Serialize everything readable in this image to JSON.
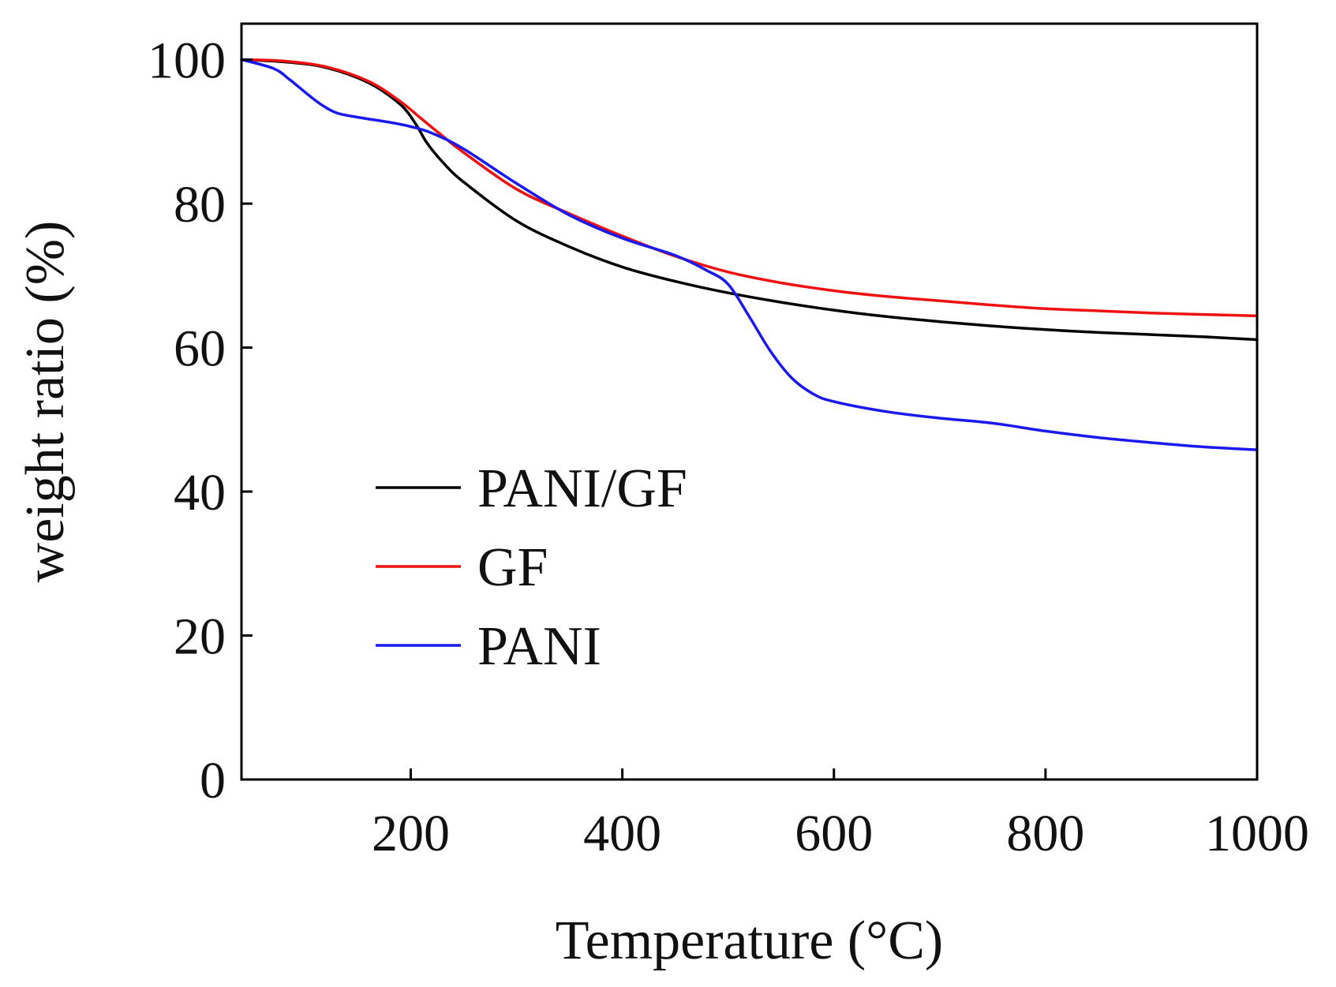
{
  "chart_data": {
    "type": "line",
    "title": "",
    "xlabel": "Temperature (°C)",
    "ylabel": "weight ratio (%)",
    "xlim": [
      40,
      1000
    ],
    "ylim": [
      0,
      105
    ],
    "xticks": [
      200,
      400,
      600,
      800,
      1000
    ],
    "yticks": [
      0,
      20,
      40,
      60,
      80,
      100
    ],
    "grid": false,
    "legend_position": "lower-left",
    "series": [
      {
        "name": "PANI/GF",
        "color": "#000000",
        "x": [
          40,
          80,
          120,
          160,
          190,
          205,
          215,
          230,
          250,
          300,
          350,
          400,
          450,
          500,
          550,
          600,
          650,
          700,
          750,
          800,
          850,
          900,
          950,
          1000
        ],
        "y": [
          100,
          99.7,
          98.9,
          96.8,
          93.8,
          91,
          88.5,
          85.8,
          83,
          77.6,
          74,
          71.2,
          69.2,
          67.6,
          66.3,
          65.2,
          64.3,
          63.6,
          63,
          62.5,
          62.1,
          61.8,
          61.5,
          61.1
        ]
      },
      {
        "name": "GF",
        "color": "#ee1111",
        "x": [
          40,
          80,
          120,
          160,
          190,
          210,
          230,
          250,
          300,
          350,
          400,
          450,
          500,
          550,
          600,
          650,
          700,
          750,
          800,
          850,
          900,
          950,
          1000
        ],
        "y": [
          100,
          99.8,
          99,
          97,
          94.2,
          91.8,
          89.4,
          87.1,
          82,
          78.6,
          75.5,
          72.7,
          70.5,
          69,
          67.9,
          67.1,
          66.5,
          65.9,
          65.4,
          65.1,
          64.8,
          64.6,
          64.4
        ]
      },
      {
        "name": "PANI",
        "color": "#1a1aee",
        "x": [
          40,
          70,
          85,
          100,
          115,
          130,
          150,
          180,
          200,
          220,
          250,
          300,
          350,
          400,
          450,
          480,
          500,
          520,
          540,
          560,
          580,
          600,
          650,
          700,
          750,
          800,
          850,
          900,
          950,
          1000
        ],
        "y": [
          100,
          98.8,
          97.3,
          95.5,
          93.8,
          92.6,
          92,
          91.3,
          90.7,
          89.8,
          87.6,
          82.8,
          78.4,
          75.2,
          72.8,
          70.7,
          68.8,
          64.3,
          59.5,
          55.8,
          53.6,
          52.5,
          51.1,
          50.2,
          49.5,
          48.4,
          47.5,
          46.8,
          46.2,
          45.8
        ]
      }
    ]
  }
}
